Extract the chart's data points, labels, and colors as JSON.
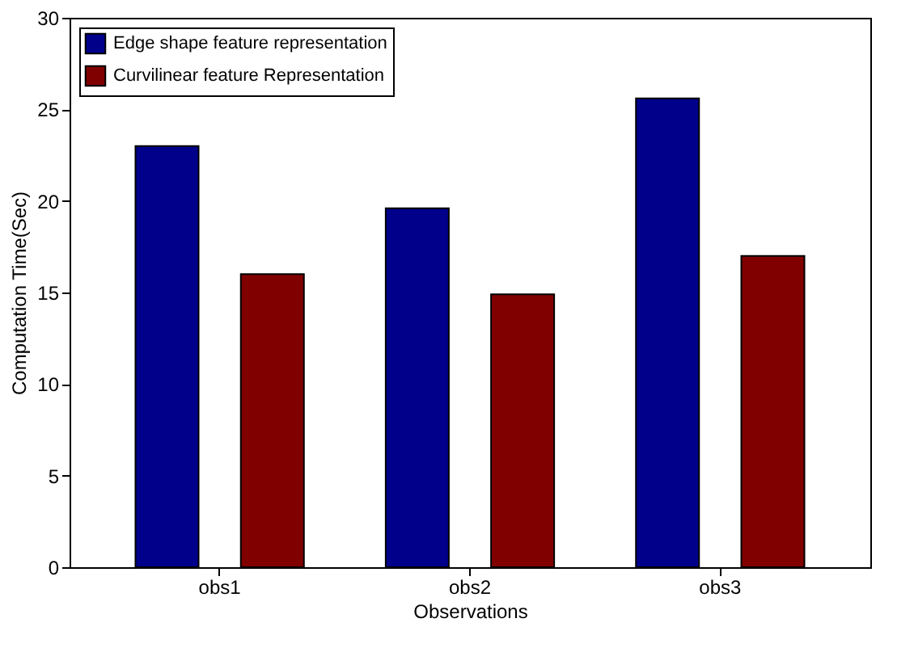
{
  "chart_data": {
    "type": "bar",
    "xlabel": "Observations",
    "ylabel": "Computation Time(Sec)",
    "categories": [
      "obs1",
      "obs2",
      "obs3"
    ],
    "series": [
      {
        "name": "Edge shape feature representation",
        "color": "#00008b",
        "values": [
          23,
          19.6,
          25.6
        ]
      },
      {
        "name": "Curvilinear feature Representation",
        "color": "#800000",
        "values": [
          16,
          14.9,
          17
        ]
      }
    ],
    "ylim": [
      0,
      30
    ],
    "yticks": [
      0,
      5,
      10,
      15,
      20,
      25,
      30
    ],
    "grid": false,
    "legend": "top left"
  }
}
